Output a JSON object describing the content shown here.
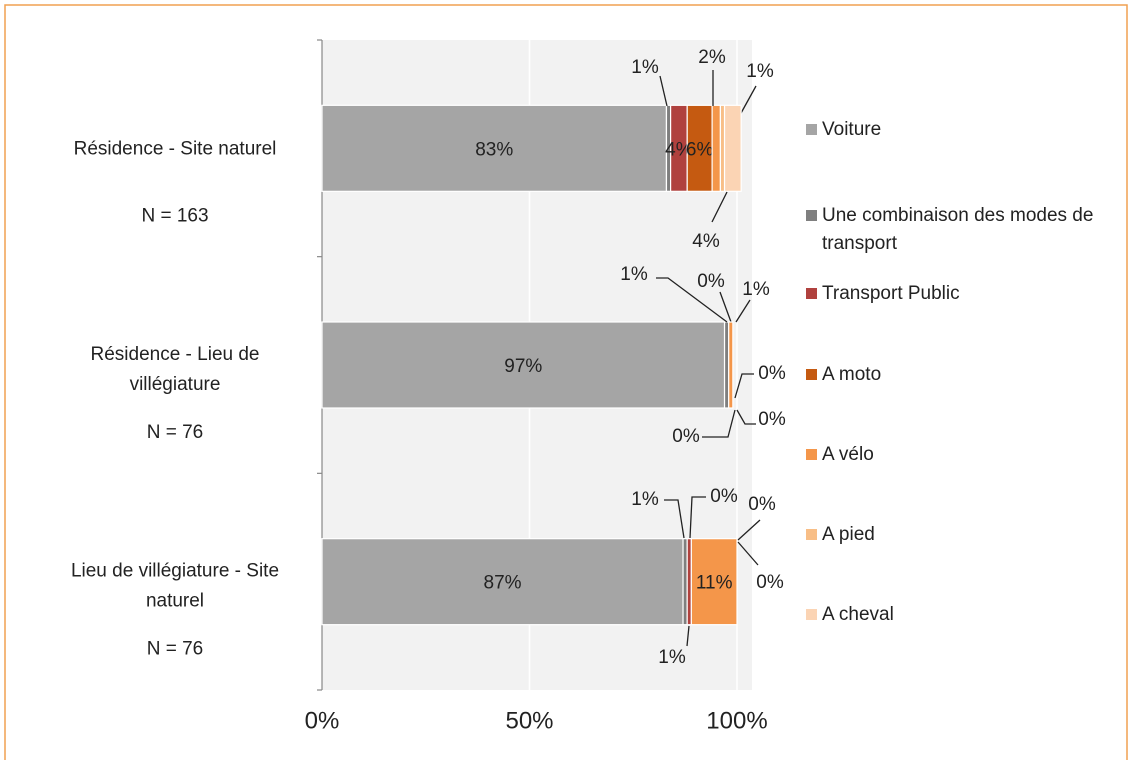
{
  "chart_data": {
    "type": "stacked-bar-horizontal",
    "categories": [
      [
        "Résidence - Site naturel"
      ],
      [
        "Résidence - Lieu de",
        "villégiature"
      ],
      [
        "Lieu de villégiature  - Site",
        "naturel"
      ]
    ],
    "sample_sizes": [
      "N = 163",
      "N = 76",
      "N = 76"
    ],
    "series": [
      {
        "name": "Voiture",
        "color": "#a5a5a5",
        "values": [
          83,
          97,
          87
        ],
        "value_labels": [
          "83%",
          "97%",
          "87%"
        ]
      },
      {
        "name": "Une combinaison des modes de transport",
        "color": "#7f7f7f",
        "values": [
          1,
          1,
          1
        ],
        "value_labels": [
          "1%",
          "1%",
          "1%"
        ]
      },
      {
        "name": "Transport Public",
        "color": "#b0413e",
        "values": [
          4,
          0,
          1
        ],
        "value_labels": [
          "4%",
          "0%",
          "1%"
        ]
      },
      {
        "name": "A moto",
        "color": "#c55a11",
        "values": [
          6,
          0,
          0
        ],
        "value_labels": [
          "6%",
          "0%",
          "0%"
        ]
      },
      {
        "name": "A vélo",
        "color": "#f4964a",
        "values": [
          2,
          1,
          11
        ],
        "value_labels": [
          "2%",
          "1%",
          "11%"
        ]
      },
      {
        "name": "A pied",
        "color": "#f8be86",
        "values": [
          1,
          0,
          0
        ],
        "value_labels": [
          "1%",
          "0%",
          "0%"
        ]
      },
      {
        "name": "A cheval",
        "color": "#fbd4b4",
        "values": [
          4,
          0,
          0
        ],
        "value_labels": [
          "4%",
          "0%",
          "0%"
        ]
      }
    ],
    "xlim": [
      0,
      100
    ],
    "xticks": [
      {
        "value": 0,
        "label": "0%"
      },
      {
        "value": 50,
        "label": "50%"
      },
      {
        "value": 100,
        "label": "100%"
      }
    ],
    "grid": true
  }
}
